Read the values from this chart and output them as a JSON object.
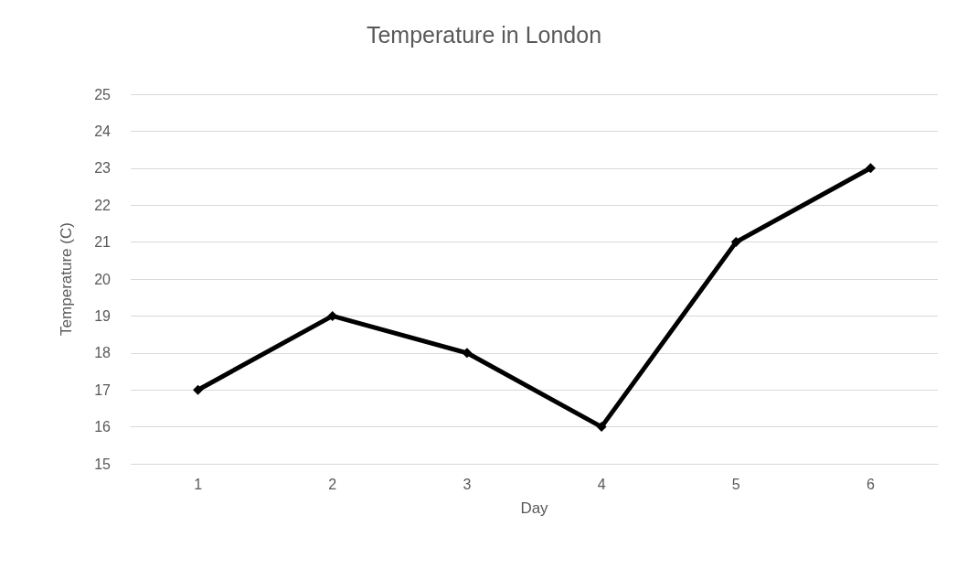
{
  "chart_data": {
    "type": "line",
    "title": "Temperature in London",
    "xlabel": "Day",
    "ylabel": "Temperature (C)",
    "categories": [
      "1",
      "2",
      "3",
      "4",
      "5",
      "6"
    ],
    "series": [
      {
        "color": "#000000",
        "values": [
          17,
          19,
          18,
          16,
          21,
          23
        ]
      }
    ],
    "ylim": [
      15,
      25
    ],
    "yticks": [
      15,
      16,
      17,
      18,
      19,
      20,
      21,
      22,
      23,
      24,
      25
    ],
    "grid": "y",
    "marker": "diamond",
    "line_style": "solid"
  }
}
